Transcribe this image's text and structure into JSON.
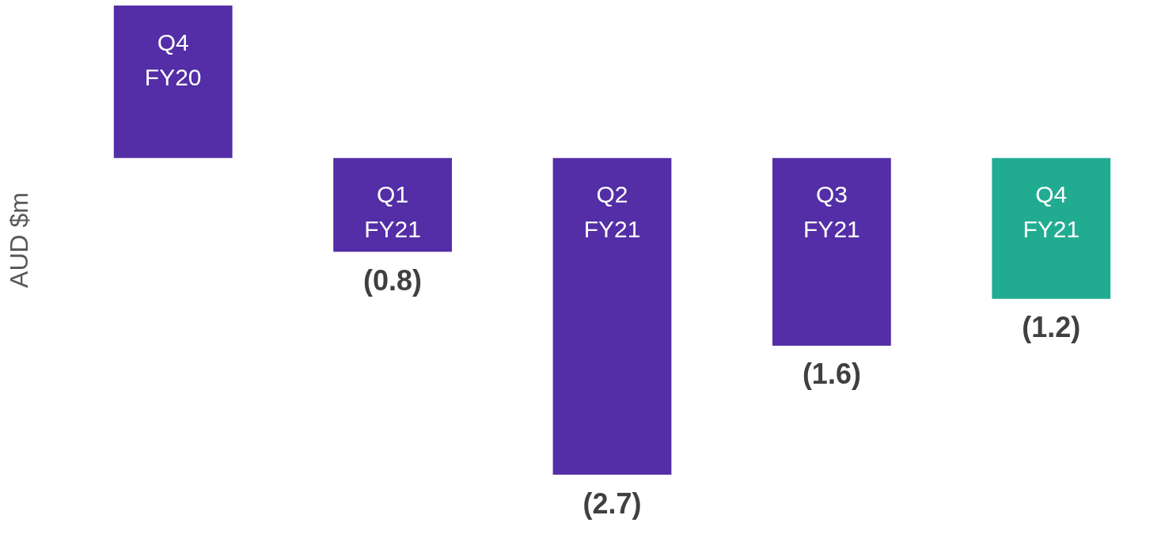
{
  "chart_data": {
    "type": "bar",
    "ylabel": "AUD $m",
    "categories": [
      "Q4 FY20",
      "Q1 FY21",
      "Q2 FY21",
      "Q3 FY21",
      "Q4 FY21"
    ],
    "values": [
      1.3,
      -0.8,
      -2.7,
      -1.6,
      -1.2
    ],
    "colors": [
      "#532ea6",
      "#532ea6",
      "#532ea6",
      "#532ea6",
      "#21ac92"
    ],
    "value_labels": [
      null,
      "(0.8)",
      "(2.7)",
      "(1.6)",
      "(1.2)"
    ]
  }
}
